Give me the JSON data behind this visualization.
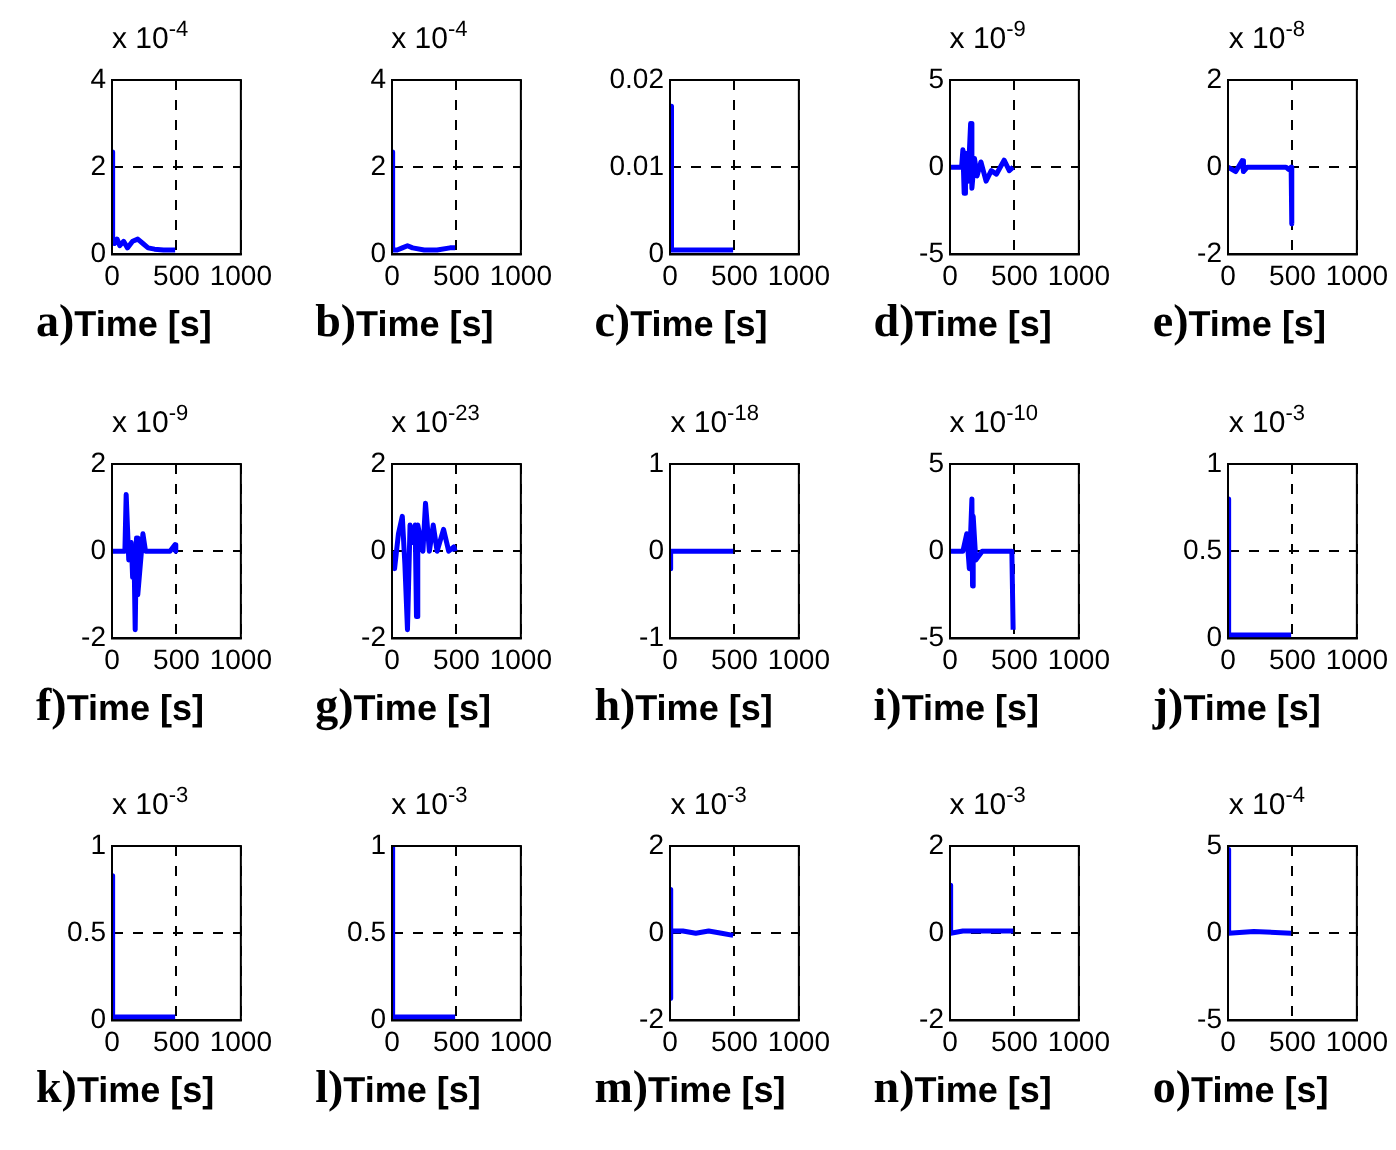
{
  "chart_data": [
    {
      "type": "line",
      "title": "a)",
      "subtitle": "x 10$^{-4}$",
      "xlabel": "Time [s]",
      "xlim": [
        0,
        1000
      ],
      "xticks": [
        0,
        500,
        1000
      ],
      "ylim": [
        0,
        4
      ],
      "yticks": [
        0,
        2,
        4
      ],
      "grid": true,
      "line_style": "solid",
      "series": [
        {
          "color": "#0000ff",
          "x": [
            0,
            5,
            20,
            40,
            60,
            90,
            120,
            160,
            200,
            240,
            280,
            330,
            400,
            490
          ],
          "values": [
            2.35,
            0.4,
            0.25,
            0.35,
            0.2,
            0.3,
            0.15,
            0.3,
            0.35,
            0.25,
            0.15,
            0.12,
            0.1,
            0.1
          ]
        }
      ]
    },
    {
      "type": "line",
      "title": "b)",
      "subtitle": "x 10$^{-4}$",
      "xlabel": "Time [s]",
      "xlim": [
        0,
        1000
      ],
      "xticks": [
        0,
        500,
        1000
      ],
      "ylim": [
        0,
        4
      ],
      "yticks": [
        0,
        2,
        4
      ],
      "grid": true,
      "line_style": "solid",
      "series": [
        {
          "color": "#0000ff",
          "x": [
            0,
            5,
            40,
            80,
            120,
            160,
            250,
            350,
            450,
            490
          ],
          "values": [
            2.35,
            0.1,
            0.1,
            0.15,
            0.2,
            0.15,
            0.1,
            0.1,
            0.15,
            0.15
          ]
        }
      ]
    },
    {
      "type": "line",
      "title": "c)",
      "xlabel": "Time [s]",
      "xlim": [
        0,
        1000
      ],
      "xticks": [
        0,
        500,
        1000
      ],
      "ylim": [
        0,
        0.02
      ],
      "yticks": [
        0,
        0.01,
        0.02
      ],
      "grid": true,
      "line_style": "solid",
      "series": [
        {
          "color": "#0000ff",
          "x": [
            0,
            8,
            15,
            490
          ],
          "values": [
            0.017,
            0.004,
            0.0005,
            0.0005
          ]
        }
      ]
    },
    {
      "type": "line",
      "title": "d)",
      "subtitle": "x 10$^{-9}$",
      "xlabel": "Time [s]",
      "xlim": [
        0,
        1000
      ],
      "xticks": [
        0,
        500,
        1000
      ],
      "ylim": [
        -5,
        5
      ],
      "yticks": [
        -5,
        0,
        5
      ],
      "grid": true,
      "line_style": "solid",
      "series": [
        {
          "color": "#0000ff",
          "x": [
            0,
            90,
            100,
            110,
            120,
            140,
            160,
            170,
            190,
            210,
            240,
            280,
            320,
            360,
            420,
            460,
            490
          ],
          "values": [
            0,
            0,
            1,
            -1.5,
            0.8,
            -0.8,
            2.5,
            -1.2,
            0.5,
            -0.5,
            0.3,
            -0.8,
            -0.2,
            -0.4,
            0.4,
            -0.2,
            0
          ]
        }
      ]
    },
    {
      "type": "line",
      "title": "e)",
      "subtitle": "x 10$^{-8}$",
      "xlabel": "Time [s]",
      "xlim": [
        0,
        1000
      ],
      "xticks": [
        0,
        500,
        1000
      ],
      "ylim": [
        -2,
        2
      ],
      "yticks": [
        -2,
        0,
        2
      ],
      "grid": true,
      "line_style": "solid",
      "series": [
        {
          "color": "#0000ff",
          "x": [
            0,
            60,
            110,
            120,
            150,
            450,
            470,
            490,
            495
          ],
          "values": [
            0,
            -0.1,
            0.15,
            -0.1,
            0,
            0,
            -0.05,
            0,
            -1.3
          ]
        }
      ]
    },
    {
      "type": "line",
      "title": "f)",
      "subtitle": "x 10$^{-9}$",
      "xlabel": "Time [s]",
      "xlim": [
        0,
        1000
      ],
      "xticks": [
        0,
        500,
        1000
      ],
      "ylim": [
        -2,
        2
      ],
      "yticks": [
        -2,
        0,
        2
      ],
      "grid": true,
      "line_style": "solid",
      "series": [
        {
          "color": "#0000ff",
          "x": [
            0,
            100,
            110,
            130,
            150,
            160,
            170,
            180,
            190,
            200,
            240,
            260,
            450,
            490,
            495
          ],
          "values": [
            0,
            0,
            1.3,
            -0.2,
            0.2,
            -0.6,
            0.1,
            -1.8,
            0.3,
            -1,
            0.4,
            0,
            0,
            0.15,
            0
          ]
        }
      ]
    },
    {
      "type": "line",
      "title": "g)",
      "subtitle": "x 10$^{-23}$",
      "xlabel": "Time [s]",
      "xlim": [
        0,
        1000
      ],
      "xticks": [
        0,
        500,
        1000
      ],
      "ylim": [
        -2,
        2
      ],
      "yticks": [
        -2,
        0,
        2
      ],
      "grid": true,
      "line_style": "solid",
      "series": [
        {
          "color": "#0000ff",
          "x": [
            0,
            20,
            50,
            80,
            100,
            120,
            140,
            160,
            180,
            190,
            200,
            240,
            260,
            290,
            320,
            350,
            400,
            440,
            480,
            490
          ],
          "values": [
            0,
            -0.4,
            0.4,
            0.8,
            -0.3,
            -1.8,
            0.6,
            0.2,
            0.6,
            -1.5,
            0.6,
            0,
            1.1,
            0,
            0.6,
            0,
            0.5,
            0,
            0.1,
            0
          ]
        }
      ]
    },
    {
      "type": "line",
      "title": "h)",
      "subtitle": "x 10$^{-18}$",
      "xlabel": "Time [s]",
      "xlim": [
        0,
        1000
      ],
      "xticks": [
        0,
        500,
        1000
      ],
      "ylim": [
        -1,
        1
      ],
      "yticks": [
        -1,
        0,
        1
      ],
      "grid": true,
      "line_style": "solid",
      "series": [
        {
          "color": "#0000ff",
          "x": [
            0,
            5,
            490
          ],
          "values": [
            -0.2,
            0,
            0
          ]
        }
      ]
    },
    {
      "type": "line",
      "title": "i)",
      "subtitle": "x 10$^{-10}$",
      "xlabel": "Time [s]",
      "xlim": [
        0,
        1000
      ],
      "xticks": [
        0,
        500,
        1000
      ],
      "ylim": [
        -5,
        5
      ],
      "yticks": [
        -5,
        0,
        5
      ],
      "grid": true,
      "line_style": "solid",
      "series": [
        {
          "color": "#0000ff",
          "x": [
            0,
            100,
            130,
            150,
            170,
            175,
            180,
            200,
            250,
            480,
            490
          ],
          "values": [
            0,
            0,
            1,
            -1,
            3,
            -2,
            2,
            -0.5,
            0,
            0,
            -4.5
          ]
        }
      ]
    },
    {
      "type": "line",
      "title": "j)",
      "subtitle": "x 10$^{-3}$",
      "xlabel": "Time [s]",
      "xlim": [
        0,
        1000
      ],
      "xticks": [
        0,
        500,
        1000
      ],
      "ylim": [
        0,
        1
      ],
      "yticks": [
        0,
        0.5,
        1
      ],
      "grid": true,
      "line_style": "solid",
      "series": [
        {
          "color": "#0000ff",
          "x": [
            0,
            5,
            490
          ],
          "values": [
            0.8,
            0.02,
            0.02
          ]
        }
      ]
    },
    {
      "type": "line",
      "title": "k)",
      "subtitle": "x 10$^{-3}$",
      "xlabel": "Time [s]",
      "xlim": [
        0,
        1000
      ],
      "xticks": [
        0,
        500,
        1000
      ],
      "ylim": [
        0,
        1
      ],
      "yticks": [
        0,
        0.5,
        1
      ],
      "grid": true,
      "line_style": "solid",
      "series": [
        {
          "color": "#0000ff",
          "x": [
            0,
            5,
            490
          ],
          "values": [
            0.83,
            0.02,
            0.02
          ]
        }
      ]
    },
    {
      "type": "line",
      "title": "l)",
      "subtitle": "x 10$^{-3}$",
      "xlabel": "Time [s]",
      "xlim": [
        0,
        1000
      ],
      "xticks": [
        0,
        500,
        1000
      ],
      "ylim": [
        0,
        1
      ],
      "yticks": [
        0,
        0.5,
        1
      ],
      "grid": true,
      "line_style": "solid",
      "series": [
        {
          "color": "#0000ff",
          "x": [
            0,
            5,
            490
          ],
          "values": [
            1,
            0.02,
            0.02
          ]
        }
      ]
    },
    {
      "type": "line",
      "title": "m)",
      "subtitle": "x 10$^{-3}$",
      "xlabel": "Time [s]",
      "xlim": [
        0,
        1000
      ],
      "xticks": [
        0,
        500,
        1000
      ],
      "ylim": [
        -2,
        2
      ],
      "yticks": [
        -2,
        0,
        2
      ],
      "grid": true,
      "line_style": "solid",
      "series": [
        {
          "color": "#0000ff",
          "x": [
            0,
            3,
            8,
            100,
            200,
            300,
            400,
            490
          ],
          "values": [
            1,
            -1.5,
            0.05,
            0.05,
            0,
            0.05,
            0,
            -0.05
          ]
        }
      ]
    },
    {
      "type": "line",
      "title": "n)",
      "subtitle": "x 10$^{-3}$",
      "xlabel": "Time [s]",
      "xlim": [
        0,
        1000
      ],
      "xticks": [
        0,
        500,
        1000
      ],
      "ylim": [
        -2,
        2
      ],
      "yticks": [
        -2,
        0,
        2
      ],
      "grid": true,
      "line_style": "solid",
      "series": [
        {
          "color": "#0000ff",
          "x": [
            0,
            5,
            100,
            490
          ],
          "values": [
            1.1,
            0,
            0.05,
            0.05
          ]
        }
      ]
    },
    {
      "type": "line",
      "title": "o)",
      "subtitle": "x 10$^{-4}$",
      "xlabel": "Time [s]",
      "xlim": [
        0,
        1000
      ],
      "xticks": [
        0,
        500,
        1000
      ],
      "ylim": [
        -5,
        5
      ],
      "yticks": [
        -5,
        0,
        5
      ],
      "grid": true,
      "line_style": "solid",
      "series": [
        {
          "color": "#0000ff",
          "x": [
            0,
            5,
            200,
            490
          ],
          "values": [
            4.8,
            0,
            0.1,
            0
          ]
        }
      ]
    }
  ]
}
